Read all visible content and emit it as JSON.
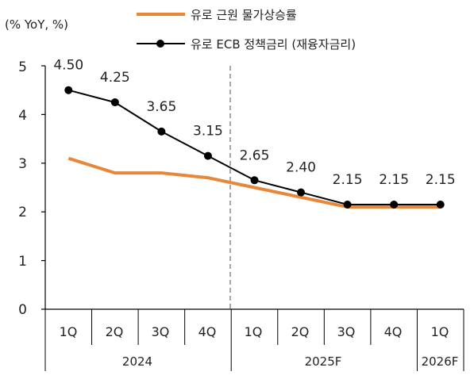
{
  "chart_data": {
    "type": "line",
    "unit_label": "(% YoY, %)",
    "categories": [
      "1Q",
      "2Q",
      "3Q",
      "4Q",
      "1Q",
      "2Q",
      "3Q",
      "4Q",
      "1Q"
    ],
    "year_groups": [
      {
        "label": "2024",
        "quarters": 4
      },
      {
        "label": "2025F",
        "quarters": 4
      },
      {
        "label": "2026F",
        "quarters": 1
      }
    ],
    "ylim": [
      0,
      5
    ],
    "yticks": [
      "0",
      "1",
      "2",
      "3",
      "4",
      "5"
    ],
    "forecast_divider_after_index": 3,
    "grid": false,
    "legend_position": "top",
    "series": [
      {
        "name": "유로 근원 물가상승률",
        "color": "#E8873A",
        "marker": "none",
        "values": [
          3.1,
          2.8,
          2.8,
          2.7,
          2.5,
          2.3,
          2.1,
          2.1,
          2.1
        ]
      },
      {
        "name": "유로 ECB 정책금리 (재융자금리)",
        "color": "#000000",
        "marker": "circle",
        "values": [
          4.5,
          4.25,
          3.65,
          3.15,
          2.65,
          2.4,
          2.15,
          2.15,
          2.15
        ],
        "data_labels": [
          "4.50",
          "4.25",
          "3.65",
          "3.15",
          "2.65",
          "2.40",
          "2.15",
          "2.15",
          "2.15"
        ]
      }
    ]
  }
}
